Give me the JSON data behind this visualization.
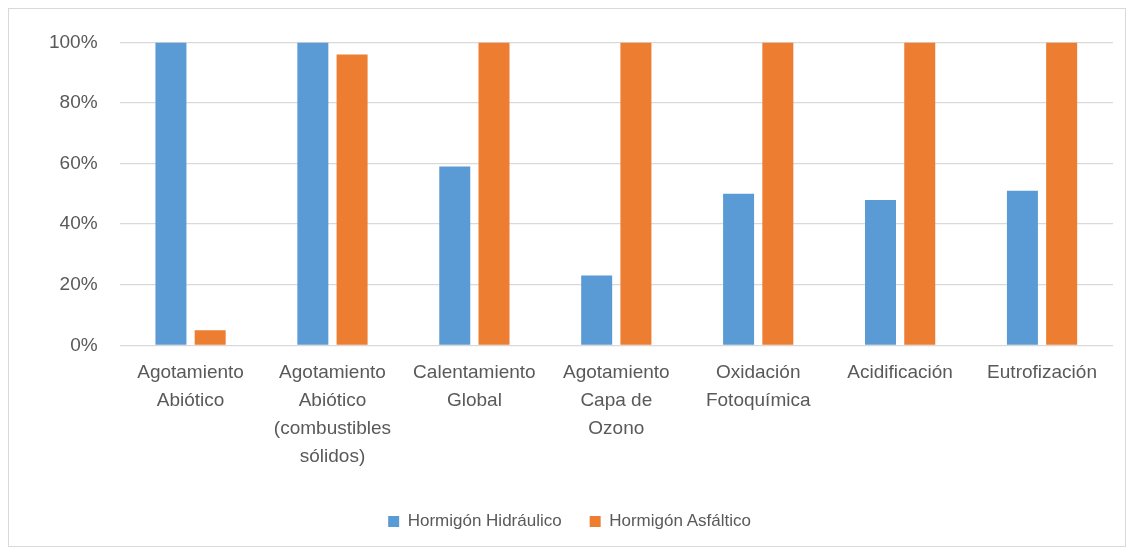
{
  "chart_data": {
    "type": "bar",
    "categories": [
      "Agotamiento Abiótico",
      "Agotamiento Abiótico (combustibles sólidos)",
      "Calentamiento Global",
      "Agotamiento Capa de Ozono",
      "Oxidación Fotoquímica",
      "Acidificación",
      "Eutrofización"
    ],
    "series": [
      {
        "name": "Hormigón Hidráulico",
        "color": "#5b9bd5",
        "values": [
          100,
          100,
          59,
          23,
          50,
          48,
          51
        ]
      },
      {
        "name": "Hormigón Asfáltico",
        "color": "#ed7d31",
        "values": [
          5,
          96,
          100,
          100,
          100,
          100,
          100
        ]
      }
    ],
    "ylim": [
      0,
      100
    ],
    "yticks": [
      {
        "value": 0,
        "label": "0%"
      },
      {
        "value": 20,
        "label": "20%"
      },
      {
        "value": 40,
        "label": "40%"
      },
      {
        "value": 60,
        "label": "60%"
      },
      {
        "value": 80,
        "label": "80%"
      },
      {
        "value": 100,
        "label": "100%"
      }
    ],
    "grid": "y",
    "legend": "bottom"
  }
}
